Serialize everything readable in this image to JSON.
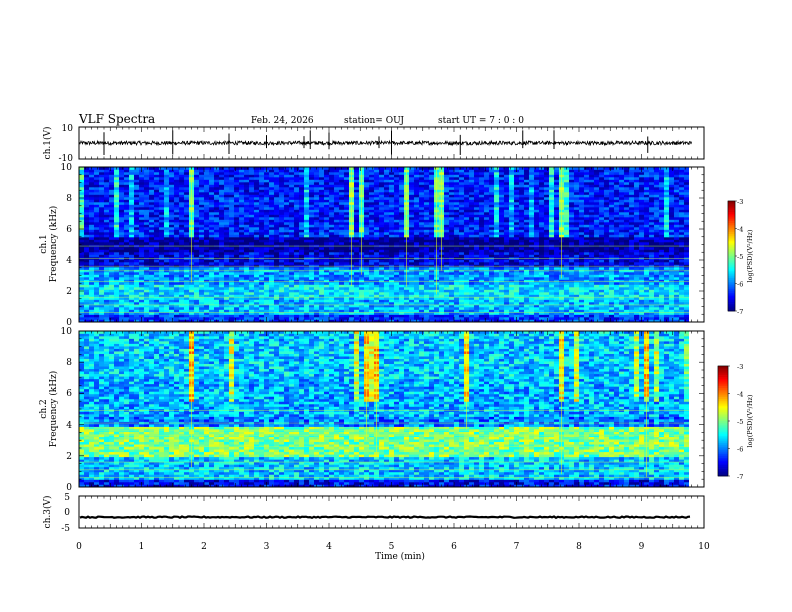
{
  "header": {
    "title": "VLF Spectra",
    "date": "Feb. 24, 2026",
    "station": "station= OUJ",
    "start": "start  UT =   7 : 0  : 0"
  },
  "colors": {
    "axis": "#000000",
    "waveform": "#000000",
    "spectrogram_low": "#00007f",
    "spectrogram_high": "#7f0000"
  },
  "chart_data": [
    {
      "id": "ch1_waveform",
      "type": "line",
      "title": "VLF Spectra",
      "ylabel": "ch.1(V)",
      "xlim": [
        0,
        10
      ],
      "ylim": [
        -10,
        10
      ],
      "yticks": [
        "10",
        "-10"
      ],
      "baseline": 0,
      "noise_amplitude": 1.2,
      "spikes_min": [
        0.0,
        0.4,
        1.5,
        2.4,
        3.0,
        3.6,
        3.7,
        4.0,
        4.8,
        5.0,
        6.1,
        7.1,
        7.6,
        9.1
      ]
    },
    {
      "id": "ch1_spectrogram",
      "type": "heatmap",
      "ylabel_top": "ch.1",
      "ylabel": "Frequency  (kHz)",
      "xlim": [
        0,
        10
      ],
      "ylim": [
        0,
        10
      ],
      "yticks": [
        "0",
        "2",
        "4",
        "6",
        "8",
        "10"
      ],
      "colorbar": {
        "label": "log(PSD)(V²/Hz)",
        "range": [
          -7,
          -3
        ],
        "ticks": [
          "-3",
          "-4",
          "-5",
          "-6",
          "-7"
        ]
      },
      "band_profile": [
        {
          "fmin": 0.0,
          "fmax": 0.5,
          "level": -6.3
        },
        {
          "fmin": 0.5,
          "fmax": 1.5,
          "level": -5.8
        },
        {
          "fmin": 1.5,
          "fmax": 2.5,
          "level": -5.6
        },
        {
          "fmin": 2.5,
          "fmax": 3.5,
          "level": -5.9
        },
        {
          "fmin": 3.5,
          "fmax": 4.5,
          "level": -6.6
        },
        {
          "fmin": 4.5,
          "fmax": 5.5,
          "level": -6.9
        },
        {
          "fmin": 5.5,
          "fmax": 10.0,
          "level": -6.4
        }
      ],
      "data_end_min": 9.8
    },
    {
      "id": "ch2_spectrogram",
      "type": "heatmap",
      "ylabel_top": "ch.2",
      "ylabel": "Frequency  (kHz)",
      "xlim": [
        0,
        10
      ],
      "ylim": [
        0,
        10
      ],
      "yticks": [
        "0",
        "2",
        "4",
        "6",
        "8",
        "10"
      ],
      "colorbar": {
        "label": "log(PSD)(V²/Hz)",
        "range": [
          -7,
          -3
        ],
        "ticks": [
          "-3",
          "-4",
          "-5",
          "-6",
          "-7"
        ]
      },
      "band_profile": [
        {
          "fmin": 0.0,
          "fmax": 0.5,
          "level": -6.5
        },
        {
          "fmin": 0.5,
          "fmax": 2.0,
          "level": -5.7
        },
        {
          "fmin": 2.0,
          "fmax": 3.8,
          "level": -5.0
        },
        {
          "fmin": 3.8,
          "fmax": 4.5,
          "level": -6.0
        },
        {
          "fmin": 4.5,
          "fmax": 7.0,
          "level": -5.8
        },
        {
          "fmin": 7.0,
          "fmax": 10.0,
          "level": -5.7
        }
      ],
      "data_end_min": 9.8
    },
    {
      "id": "ch3_waveform",
      "type": "line",
      "ylabel": "ch.3(V)",
      "xlim": [
        0,
        10
      ],
      "ylim": [
        -5,
        5
      ],
      "yticks": [
        "5",
        "0",
        "-5"
      ],
      "baseline": -1.6,
      "noise_amplitude": 0.2
    }
  ],
  "xaxis": {
    "label": "Time  (min)",
    "ticks": [
      "0",
      "1",
      "2",
      "3",
      "4",
      "5",
      "6",
      "7",
      "8",
      "9",
      "10"
    ]
  }
}
